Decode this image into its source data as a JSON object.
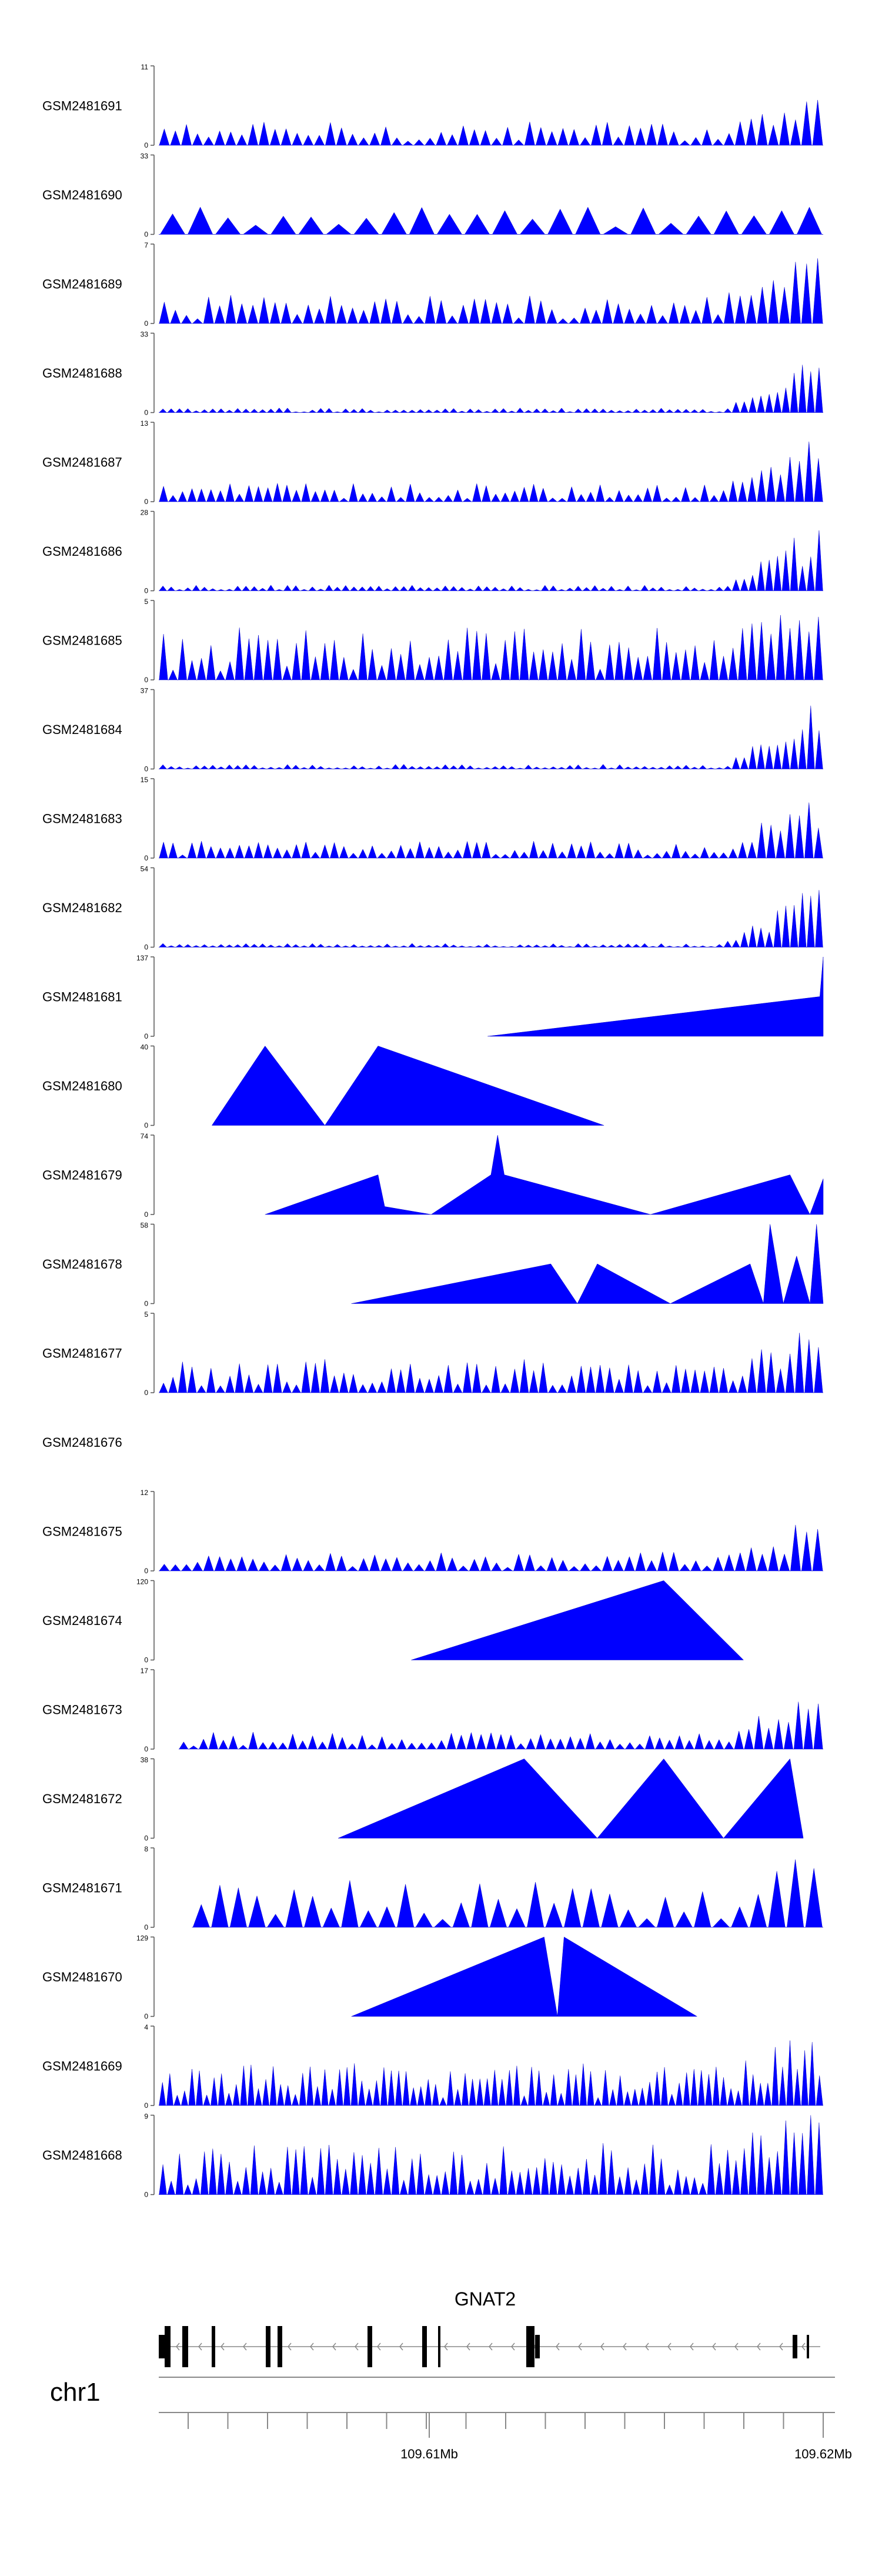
{
  "chart_data": {
    "type": "area",
    "genome": {
      "chromosome": "chr1",
      "gene_label": "GNAT2",
      "axis_ticks": [
        "109.61Mb",
        "109.62Mb"
      ]
    },
    "tracks": [
      {
        "name": "GSM2481691",
        "ymax": "11",
        "ymin": "0"
      },
      {
        "name": "GSM2481690",
        "ymax": "33",
        "ymin": "0"
      },
      {
        "name": "GSM2481689",
        "ymax": "7",
        "ymin": "0"
      },
      {
        "name": "GSM2481688",
        "ymax": "33",
        "ymin": "0"
      },
      {
        "name": "GSM2481687",
        "ymax": "13",
        "ymin": "0"
      },
      {
        "name": "GSM2481686",
        "ymax": "28",
        "ymin": "0"
      },
      {
        "name": "GSM2481685",
        "ymax": "5",
        "ymin": "0"
      },
      {
        "name": "GSM2481684",
        "ymax": "37",
        "ymin": "0"
      },
      {
        "name": "GSM2481683",
        "ymax": "15",
        "ymin": "0"
      },
      {
        "name": "GSM2481682",
        "ymax": "54",
        "ymin": "0"
      },
      {
        "name": "GSM2481681",
        "ymax": "137",
        "ymin": "0"
      },
      {
        "name": "GSM2481680",
        "ymax": "40",
        "ymin": "0"
      },
      {
        "name": "GSM2481679",
        "ymax": "74",
        "ymin": "0"
      },
      {
        "name": "GSM2481678",
        "ymax": "58",
        "ymin": "0"
      },
      {
        "name": "GSM2481677",
        "ymax": "5",
        "ymin": "0"
      },
      {
        "name": "GSM2481676",
        "ymax": "",
        "ymin": ""
      },
      {
        "name": "GSM2481675",
        "ymax": "12",
        "ymin": "0"
      },
      {
        "name": "GSM2481674",
        "ymax": "120",
        "ymin": "0"
      },
      {
        "name": "GSM2481673",
        "ymax": "17",
        "ymin": "0"
      },
      {
        "name": "GSM2481672",
        "ymax": "38",
        "ymin": "0"
      },
      {
        "name": "GSM2481671",
        "ymax": "8",
        "ymin": "0"
      },
      {
        "name": "GSM2481670",
        "ymax": "129",
        "ymin": "0"
      },
      {
        "name": "GSM2481669",
        "ymax": "4",
        "ymin": "0"
      },
      {
        "name": "GSM2481668",
        "ymax": "9",
        "ymin": "0"
      }
    ]
  }
}
